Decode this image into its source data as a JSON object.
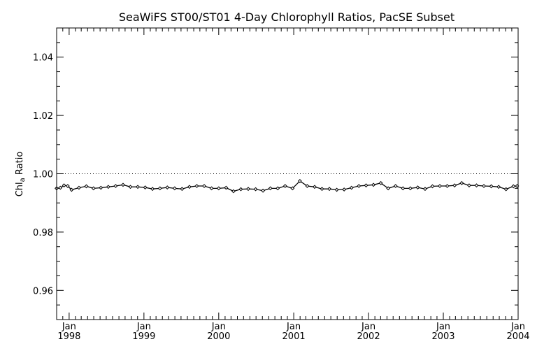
{
  "chart_data": {
    "type": "line",
    "title": "SeaWiFS ST00/ST01 4-Day Chlorophyll Ratios, PacSE Subset",
    "ylabel_main": "Chl",
    "ylabel_sub": "a",
    "ylabel_rest": " Ratio",
    "ylim": [
      0.95,
      1.05
    ],
    "yticks": [
      0.96,
      0.98,
      1.0,
      1.02,
      1.04
    ],
    "ytick_labels": [
      "0.96",
      "0.98",
      "1.00",
      "1.02",
      "1.04"
    ],
    "xlim": [
      "1997-11-01",
      "2004-01-01"
    ],
    "xticks": [
      {
        "date": "1998-01-01",
        "top": "Jan",
        "bottom": "1998"
      },
      {
        "date": "1999-01-01",
        "top": "Jan",
        "bottom": "1999"
      },
      {
        "date": "2000-01-01",
        "top": "Jan",
        "bottom": "2000"
      },
      {
        "date": "2001-01-01",
        "top": "Jan",
        "bottom": "2001"
      },
      {
        "date": "2002-01-01",
        "top": "Jan",
        "bottom": "2002"
      },
      {
        "date": "2003-01-01",
        "top": "Jan",
        "bottom": "2003"
      },
      {
        "date": "2004-01-01",
        "top": "Jan",
        "bottom": "2004"
      }
    ],
    "reference_line": 1.0,
    "series": [
      {
        "x": [
          "1997-11-01",
          "1997-11-19",
          "1997-12-07",
          "1997-12-25",
          "1998-01-13",
          "1998-02-18",
          "1998-03-26",
          "1998-04-30",
          "1998-06-05",
          "1998-07-11",
          "1998-08-16",
          "1998-09-21",
          "1998-10-27",
          "1998-12-02",
          "1999-01-07",
          "1999-02-12",
          "1999-03-20",
          "1999-04-25",
          "1999-05-31",
          "1999-07-06",
          "1999-08-11",
          "1999-09-16",
          "1999-10-22",
          "1999-11-27",
          "2000-01-01",
          "2000-02-06",
          "2000-03-13",
          "2000-04-18",
          "2000-05-24",
          "2000-06-29",
          "2000-08-04",
          "2000-09-09",
          "2000-10-15",
          "2000-11-20",
          "2000-12-26",
          "2001-01-31",
          "2001-03-08",
          "2001-04-13",
          "2001-05-19",
          "2001-06-24",
          "2001-07-30",
          "2001-09-04",
          "2001-10-10",
          "2001-11-15",
          "2001-12-20",
          "2002-01-25",
          "2002-03-02",
          "2002-04-07",
          "2002-05-13",
          "2002-06-18",
          "2002-07-24",
          "2002-08-29",
          "2002-10-04",
          "2002-11-09",
          "2002-12-15",
          "2003-01-20",
          "2003-02-25",
          "2003-04-01",
          "2003-05-07",
          "2003-06-12",
          "2003-07-18",
          "2003-08-23",
          "2003-09-28",
          "2003-11-03",
          "2003-12-09",
          "2003-12-27"
        ],
        "values": [
          0.995,
          0.9952,
          0.996,
          0.9958,
          0.9945,
          0.9952,
          0.9957,
          0.995,
          0.9952,
          0.9955,
          0.9958,
          0.9962,
          0.9955,
          0.9955,
          0.9953,
          0.9948,
          0.995,
          0.9953,
          0.995,
          0.9948,
          0.9955,
          0.9958,
          0.9958,
          0.995,
          0.995,
          0.9952,
          0.994,
          0.9947,
          0.9948,
          0.9947,
          0.9942,
          0.995,
          0.995,
          0.9958,
          0.995,
          0.9975,
          0.9958,
          0.9955,
          0.9948,
          0.9948,
          0.9945,
          0.9946,
          0.9952,
          0.9958,
          0.996,
          0.9962,
          0.9968,
          0.995,
          0.9958,
          0.995,
          0.995,
          0.9953,
          0.9948,
          0.9957,
          0.9958,
          0.9958,
          0.996,
          0.9968,
          0.996,
          0.996,
          0.9958,
          0.9957,
          0.9955,
          0.9947,
          0.9957,
          0.9958
        ]
      }
    ]
  }
}
